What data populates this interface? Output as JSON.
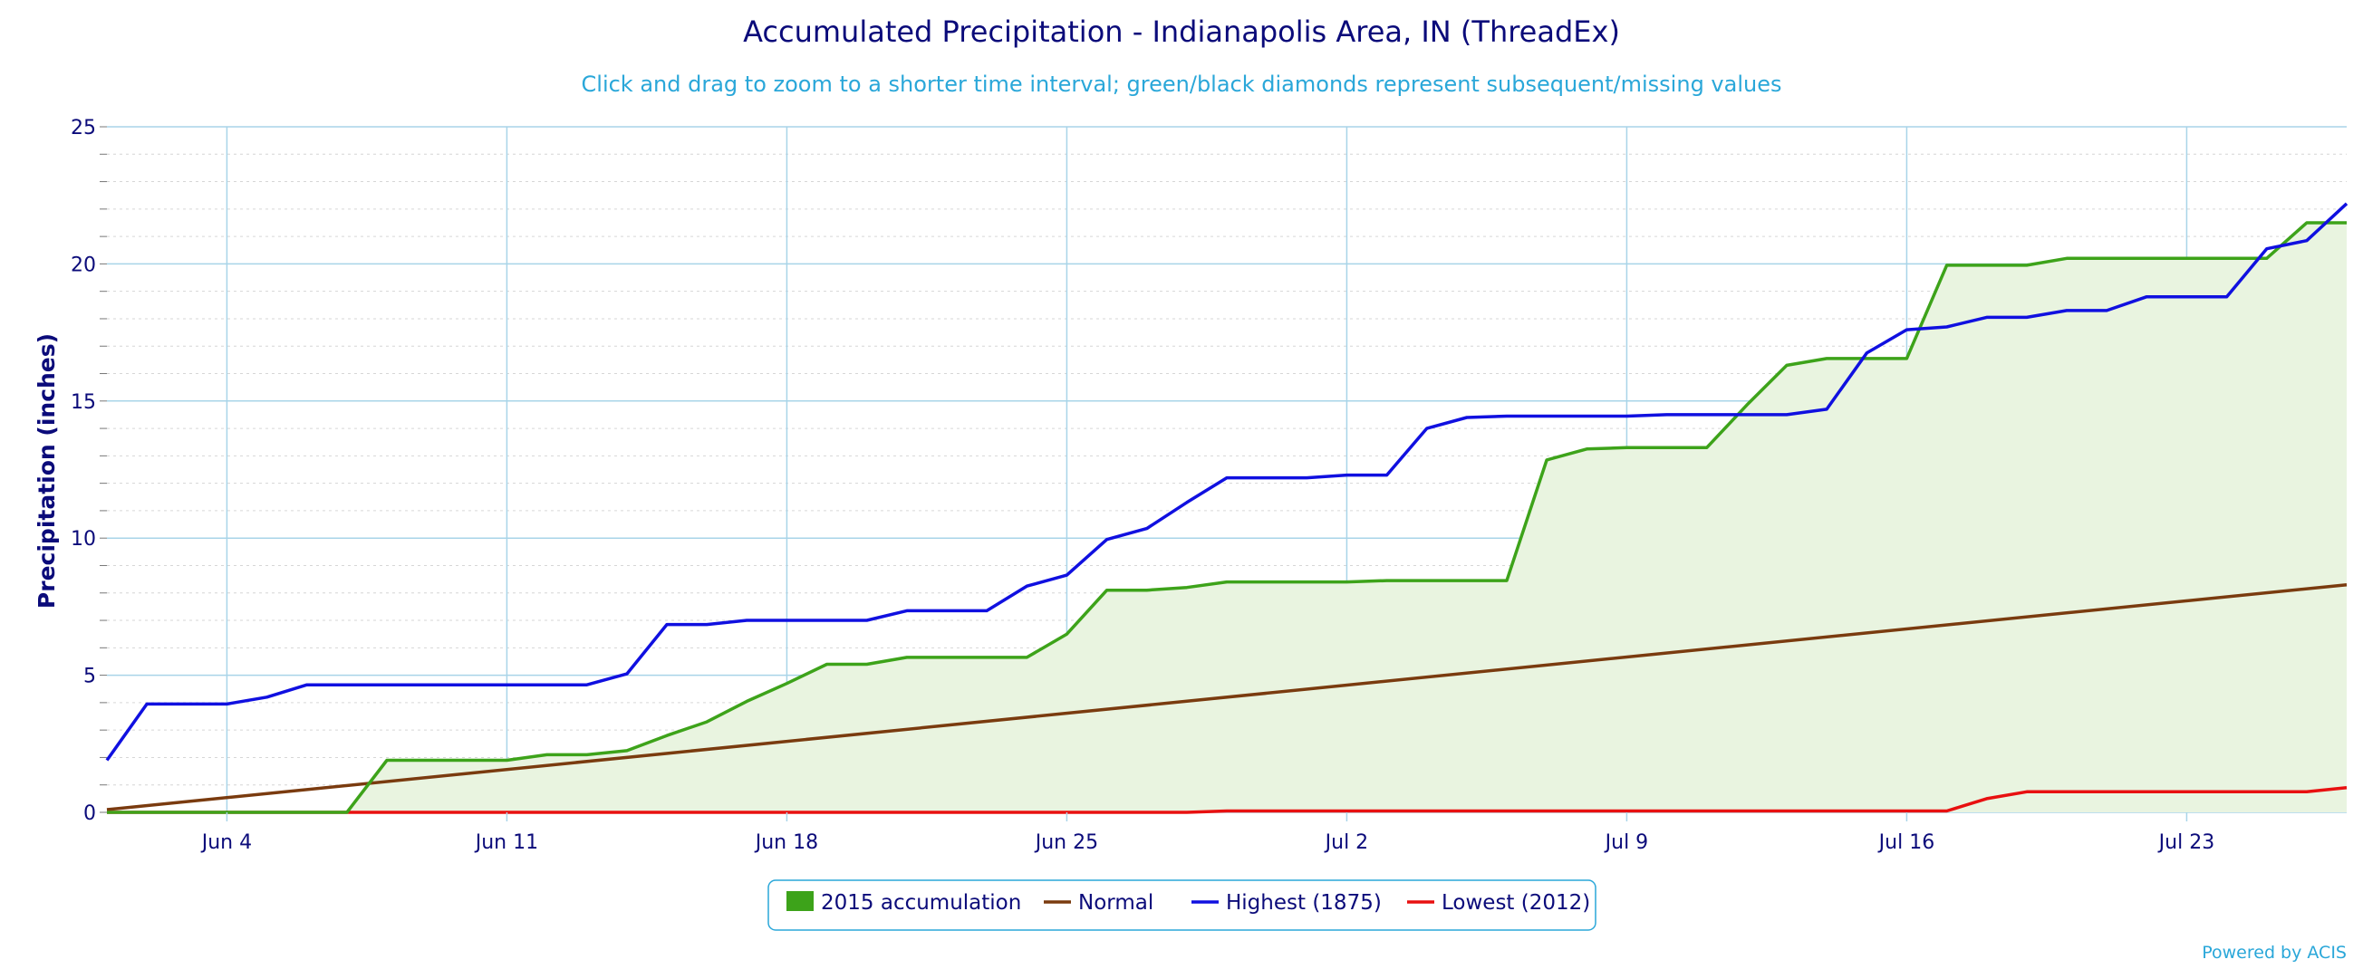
{
  "page": {
    "title": "Accumulated Precipitation - Indianapolis Area, IN (ThreadEx)",
    "subtitle": "Click and drag to zoom to a shorter time interval; green/black diamonds represent subsequent/missing values",
    "credit": "Powered by ACIS"
  },
  "colors": {
    "accum_2015": "#3da31a",
    "accum_fill": "#e9f4e0",
    "normal": "#7a3b0f",
    "highest": "#1010e0",
    "lowest": "#e81010",
    "grid_major": "#a8d4e8",
    "grid_minor": "#d6d6d6",
    "text": "#0b0b7a",
    "legend_border": "#2aa7d9"
  },
  "chart_data": {
    "type": "line",
    "title": "Accumulated Precipitation - Indianapolis Area, IN (ThreadEx)",
    "subtitle": "Click and drag to zoom to a shorter time interval; green/black diamonds represent subsequent/missing values",
    "xlabel": "",
    "ylabel": "Precipitation (inches)",
    "x_domain": [
      "2015-06-01",
      "2015-07-27"
    ],
    "x_ticks": [
      "Jun 4",
      "Jun 11",
      "Jun 18",
      "Jun 25",
      "Jul 2",
      "Jul 9",
      "Jul 16",
      "Jul 23"
    ],
    "x_tick_dates": [
      "2015-06-04",
      "2015-06-11",
      "2015-06-18",
      "2015-06-25",
      "2015-07-02",
      "2015-07-09",
      "2015-07-16",
      "2015-07-23"
    ],
    "ylim": [
      0,
      25
    ],
    "y_ticks": [
      0,
      5,
      10,
      15,
      20,
      25
    ],
    "grid": true,
    "legend_position": "bottom-center",
    "series": [
      {
        "name": "2015 accumulation",
        "style": "area",
        "points": [
          [
            "2015-06-01",
            0.0
          ],
          [
            "2015-06-02",
            0.0
          ],
          [
            "2015-06-03",
            0.0
          ],
          [
            "2015-06-04",
            0.0
          ],
          [
            "2015-06-05",
            0.0
          ],
          [
            "2015-06-06",
            0.0
          ],
          [
            "2015-06-07",
            0.0
          ],
          [
            "2015-06-08",
            1.9
          ],
          [
            "2015-06-09",
            1.9
          ],
          [
            "2015-06-10",
            1.9
          ],
          [
            "2015-06-11",
            1.9
          ],
          [
            "2015-06-12",
            2.1
          ],
          [
            "2015-06-13",
            2.1
          ],
          [
            "2015-06-14",
            2.25
          ],
          [
            "2015-06-15",
            2.8
          ],
          [
            "2015-06-16",
            3.3
          ],
          [
            "2015-06-17",
            4.05
          ],
          [
            "2015-06-18",
            4.7
          ],
          [
            "2015-06-19",
            5.4
          ],
          [
            "2015-06-20",
            5.4
          ],
          [
            "2015-06-21",
            5.65
          ],
          [
            "2015-06-22",
            5.65
          ],
          [
            "2015-06-23",
            5.65
          ],
          [
            "2015-06-24",
            5.65
          ],
          [
            "2015-06-25",
            6.5
          ],
          [
            "2015-06-26",
            8.1
          ],
          [
            "2015-06-27",
            8.1
          ],
          [
            "2015-06-28",
            8.2
          ],
          [
            "2015-06-29",
            8.4
          ],
          [
            "2015-06-30",
            8.4
          ],
          [
            "2015-07-01",
            8.4
          ],
          [
            "2015-07-02",
            8.4
          ],
          [
            "2015-07-03",
            8.45
          ],
          [
            "2015-07-04",
            8.45
          ],
          [
            "2015-07-05",
            8.45
          ],
          [
            "2015-07-06",
            8.45
          ],
          [
            "2015-07-07",
            12.85
          ],
          [
            "2015-07-08",
            13.25
          ],
          [
            "2015-07-09",
            13.3
          ],
          [
            "2015-07-10",
            13.3
          ],
          [
            "2015-07-11",
            13.3
          ],
          [
            "2015-07-12",
            14.85
          ],
          [
            "2015-07-13",
            16.3
          ],
          [
            "2015-07-14",
            16.55
          ],
          [
            "2015-07-15",
            16.55
          ],
          [
            "2015-07-16",
            16.55
          ],
          [
            "2015-07-17",
            19.95
          ],
          [
            "2015-07-18",
            19.95
          ],
          [
            "2015-07-19",
            19.95
          ],
          [
            "2015-07-20",
            20.2
          ],
          [
            "2015-07-21",
            20.2
          ],
          [
            "2015-07-22",
            20.2
          ],
          [
            "2015-07-23",
            20.2
          ],
          [
            "2015-07-24",
            20.2
          ],
          [
            "2015-07-25",
            20.2
          ],
          [
            "2015-07-26",
            21.5
          ],
          [
            "2015-07-27",
            21.5
          ]
        ]
      },
      {
        "name": "Normal",
        "style": "line",
        "points": [
          [
            "2015-06-01",
            0.1
          ],
          [
            "2015-07-27",
            8.3
          ]
        ]
      },
      {
        "name": "Highest (1875)",
        "style": "line",
        "points": [
          [
            "2015-06-01",
            1.9
          ],
          [
            "2015-06-02",
            3.95
          ],
          [
            "2015-06-03",
            3.95
          ],
          [
            "2015-06-04",
            3.95
          ],
          [
            "2015-06-05",
            4.2
          ],
          [
            "2015-06-06",
            4.65
          ],
          [
            "2015-06-07",
            4.65
          ],
          [
            "2015-06-08",
            4.65
          ],
          [
            "2015-06-09",
            4.65
          ],
          [
            "2015-06-10",
            4.65
          ],
          [
            "2015-06-11",
            4.65
          ],
          [
            "2015-06-12",
            4.65
          ],
          [
            "2015-06-13",
            4.65
          ],
          [
            "2015-06-14",
            5.05
          ],
          [
            "2015-06-15",
            6.85
          ],
          [
            "2015-06-16",
            6.85
          ],
          [
            "2015-06-17",
            7.0
          ],
          [
            "2015-06-18",
            7.0
          ],
          [
            "2015-06-19",
            7.0
          ],
          [
            "2015-06-20",
            7.0
          ],
          [
            "2015-06-21",
            7.35
          ],
          [
            "2015-06-22",
            7.35
          ],
          [
            "2015-06-23",
            7.35
          ],
          [
            "2015-06-24",
            8.25
          ],
          [
            "2015-06-25",
            8.65
          ],
          [
            "2015-06-26",
            9.95
          ],
          [
            "2015-06-27",
            10.35
          ],
          [
            "2015-06-28",
            11.3
          ],
          [
            "2015-06-29",
            12.2
          ],
          [
            "2015-06-30",
            12.2
          ],
          [
            "2015-07-01",
            12.2
          ],
          [
            "2015-07-02",
            12.3
          ],
          [
            "2015-07-03",
            12.3
          ],
          [
            "2015-07-04",
            14.0
          ],
          [
            "2015-07-05",
            14.4
          ],
          [
            "2015-07-06",
            14.45
          ],
          [
            "2015-07-07",
            14.45
          ],
          [
            "2015-07-08",
            14.45
          ],
          [
            "2015-07-09",
            14.45
          ],
          [
            "2015-07-10",
            14.5
          ],
          [
            "2015-07-11",
            14.5
          ],
          [
            "2015-07-12",
            14.5
          ],
          [
            "2015-07-13",
            14.5
          ],
          [
            "2015-07-14",
            14.7
          ],
          [
            "2015-07-15",
            16.75
          ],
          [
            "2015-07-16",
            17.6
          ],
          [
            "2015-07-17",
            17.7
          ],
          [
            "2015-07-18",
            18.05
          ],
          [
            "2015-07-19",
            18.05
          ],
          [
            "2015-07-20",
            18.3
          ],
          [
            "2015-07-21",
            18.3
          ],
          [
            "2015-07-22",
            18.8
          ],
          [
            "2015-07-23",
            18.8
          ],
          [
            "2015-07-24",
            18.8
          ],
          [
            "2015-07-25",
            20.55
          ],
          [
            "2015-07-26",
            20.85
          ],
          [
            "2015-07-27",
            22.2
          ]
        ]
      },
      {
        "name": "Lowest (2012)",
        "style": "line",
        "points": [
          [
            "2015-06-01",
            0.0
          ],
          [
            "2015-06-28",
            0.0
          ],
          [
            "2015-06-29",
            0.05
          ],
          [
            "2015-07-17",
            0.05
          ],
          [
            "2015-07-18",
            0.5
          ],
          [
            "2015-07-19",
            0.75
          ],
          [
            "2015-07-26",
            0.75
          ],
          [
            "2015-07-27",
            0.9
          ]
        ]
      }
    ]
  }
}
